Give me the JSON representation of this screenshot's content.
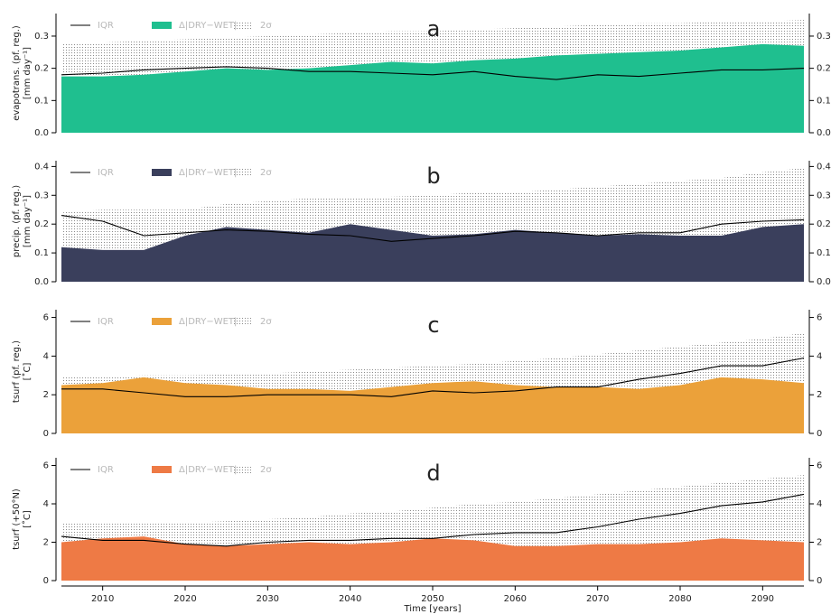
{
  "chart_data": [
    {
      "type": "area",
      "panel_label": "a",
      "ylabel": [
        "evapotrans. (pf. reg.)",
        "[mm day⁻¹]"
      ],
      "x": [
        2005,
        2010,
        2015,
        2020,
        2025,
        2030,
        2035,
        2040,
        2045,
        2050,
        2055,
        2060,
        2065,
        2070,
        2075,
        2080,
        2085,
        2090,
        2095
      ],
      "xlim": [
        2005,
        2095
      ],
      "ylim": [
        0,
        0.37
      ],
      "yticks": [
        {
          "value": 0,
          "label": "0.0"
        },
        {
          "value": 0.1,
          "label": "0.1"
        },
        {
          "value": 0.2,
          "label": "0.2"
        },
        {
          "value": 0.3,
          "label": "0.3"
        }
      ],
      "series": [
        {
          "name": "IQR",
          "style": "line",
          "color": "#000000",
          "values": [
            0.18,
            0.185,
            0.195,
            0.2,
            0.205,
            0.2,
            0.19,
            0.19,
            0.185,
            0.18,
            0.19,
            0.175,
            0.165,
            0.18,
            0.175,
            0.185,
            0.195,
            0.195,
            0.2
          ]
        },
        {
          "name": "Δ|DRY−WET|",
          "style": "area",
          "color": "#1fbf8f",
          "values": [
            0.175,
            0.175,
            0.18,
            0.19,
            0.2,
            0.195,
            0.2,
            0.21,
            0.22,
            0.215,
            0.225,
            0.23,
            0.24,
            0.245,
            0.25,
            0.255,
            0.265,
            0.275,
            0.27
          ]
        },
        {
          "name": "2σ",
          "style": "stipple",
          "color": "#8a8a8a",
          "values": [
            0.275,
            0.28,
            0.285,
            0.29,
            0.295,
            0.3,
            0.305,
            0.31,
            0.315,
            0.315,
            0.32,
            0.325,
            0.33,
            0.335,
            0.34,
            0.34,
            0.345,
            0.345,
            0.35
          ]
        }
      ]
    },
    {
      "type": "area",
      "panel_label": "b",
      "ylabel": [
        "precip. (pf. reg.)",
        "[mm day⁻¹]"
      ],
      "x": [
        2005,
        2010,
        2015,
        2020,
        2025,
        2030,
        2035,
        2040,
        2045,
        2050,
        2055,
        2060,
        2065,
        2070,
        2075,
        2080,
        2085,
        2090,
        2095
      ],
      "xlim": [
        2005,
        2095
      ],
      "ylim": [
        0,
        0.42
      ],
      "yticks": [
        {
          "value": 0,
          "label": "0.0"
        },
        {
          "value": 0.1,
          "label": "0.1"
        },
        {
          "value": 0.2,
          "label": "0.2"
        },
        {
          "value": 0.3,
          "label": "0.3"
        },
        {
          "value": 0.4,
          "label": "0.4"
        }
      ],
      "series": [
        {
          "name": "IQR",
          "style": "line",
          "color": "#000000",
          "values": [
            0.23,
            0.21,
            0.16,
            0.17,
            0.18,
            0.175,
            0.165,
            0.16,
            0.14,
            0.15,
            0.16,
            0.175,
            0.17,
            0.16,
            0.17,
            0.17,
            0.2,
            0.21,
            0.215
          ]
        },
        {
          "name": "Δ|DRY−WET|",
          "style": "area",
          "color": "#3a3f5c",
          "values": [
            0.12,
            0.11,
            0.11,
            0.16,
            0.19,
            0.18,
            0.17,
            0.2,
            0.18,
            0.16,
            0.165,
            0.18,
            0.17,
            0.16,
            0.165,
            0.16,
            0.16,
            0.19,
            0.2
          ]
        },
        {
          "name": "2σ",
          "style": "stipple",
          "color": "#8a8a8a",
          "values": [
            0.24,
            0.25,
            0.25,
            0.25,
            0.27,
            0.28,
            0.29,
            0.29,
            0.295,
            0.3,
            0.31,
            0.31,
            0.32,
            0.33,
            0.34,
            0.35,
            0.36,
            0.38,
            0.395
          ]
        }
      ]
    },
    {
      "type": "area",
      "panel_label": "c",
      "ylabel": [
        "tsurf (pf. reg.)",
        "[˚C]"
      ],
      "x": [
        2005,
        2010,
        2015,
        2020,
        2025,
        2030,
        2035,
        2040,
        2045,
        2050,
        2055,
        2060,
        2065,
        2070,
        2075,
        2080,
        2085,
        2090,
        2095
      ],
      "xlim": [
        2005,
        2095
      ],
      "ylim": [
        0,
        6.4
      ],
      "yticks": [
        0,
        2,
        4,
        6
      ],
      "series": [
        {
          "name": "IQR",
          "style": "line",
          "color": "#000000",
          "values": [
            2.3,
            2.3,
            2.1,
            1.9,
            1.9,
            2.0,
            2.0,
            2.0,
            1.9,
            2.2,
            2.1,
            2.2,
            2.4,
            2.4,
            2.8,
            3.1,
            3.5,
            3.5,
            3.9
          ]
        },
        {
          "name": "Δ|DRY−WET|",
          "style": "area",
          "color": "#eba13a",
          "values": [
            2.5,
            2.6,
            2.9,
            2.6,
            2.5,
            2.3,
            2.3,
            2.2,
            2.4,
            2.6,
            2.7,
            2.5,
            2.4,
            2.4,
            2.3,
            2.5,
            2.9,
            2.8,
            2.6
          ]
        },
        {
          "name": "2σ",
          "style": "stipple",
          "color": "#8a8a8a",
          "values": [
            2.9,
            2.95,
            3.0,
            3.0,
            3.05,
            3.1,
            3.2,
            3.3,
            3.4,
            3.5,
            3.6,
            3.75,
            3.9,
            4.1,
            4.3,
            4.5,
            4.7,
            4.9,
            5.2
          ]
        }
      ]
    },
    {
      "type": "area",
      "panel_label": "d",
      "ylabel": [
        "tsurf (+50°N)",
        "[˚C]"
      ],
      "xlabel": "Time [years]",
      "x": [
        2005,
        2010,
        2015,
        2020,
        2025,
        2030,
        2035,
        2040,
        2045,
        2050,
        2055,
        2060,
        2065,
        2070,
        2075,
        2080,
        2085,
        2090,
        2095
      ],
      "xlim": [
        2005,
        2095
      ],
      "xticks": [
        2010,
        2020,
        2030,
        2040,
        2050,
        2060,
        2070,
        2080,
        2090
      ],
      "ylim": [
        0,
        6.4
      ],
      "yticks": [
        0,
        2,
        4,
        6
      ],
      "series": [
        {
          "name": "IQR",
          "style": "line",
          "color": "#000000",
          "values": [
            2.3,
            2.1,
            2.1,
            1.9,
            1.8,
            2.0,
            2.1,
            2.1,
            2.2,
            2.2,
            2.4,
            2.5,
            2.5,
            2.8,
            3.2,
            3.5,
            3.9,
            4.1,
            4.5
          ]
        },
        {
          "name": "Δ|DRY−WET|",
          "style": "area",
          "color": "#ee7a45",
          "values": [
            2.0,
            2.2,
            2.3,
            1.9,
            1.8,
            1.9,
            2.0,
            1.9,
            2.0,
            2.2,
            2.1,
            1.8,
            1.8,
            1.9,
            1.9,
            2.0,
            2.2,
            2.1,
            2.0
          ]
        },
        {
          "name": "2σ",
          "style": "stipple",
          "color": "#8a8a8a",
          "values": [
            3.0,
            3.0,
            3.0,
            3.0,
            3.1,
            3.2,
            3.3,
            3.5,
            3.6,
            3.8,
            4.0,
            4.1,
            4.3,
            4.5,
            4.7,
            4.9,
            5.1,
            5.3,
            5.5
          ]
        }
      ]
    }
  ]
}
